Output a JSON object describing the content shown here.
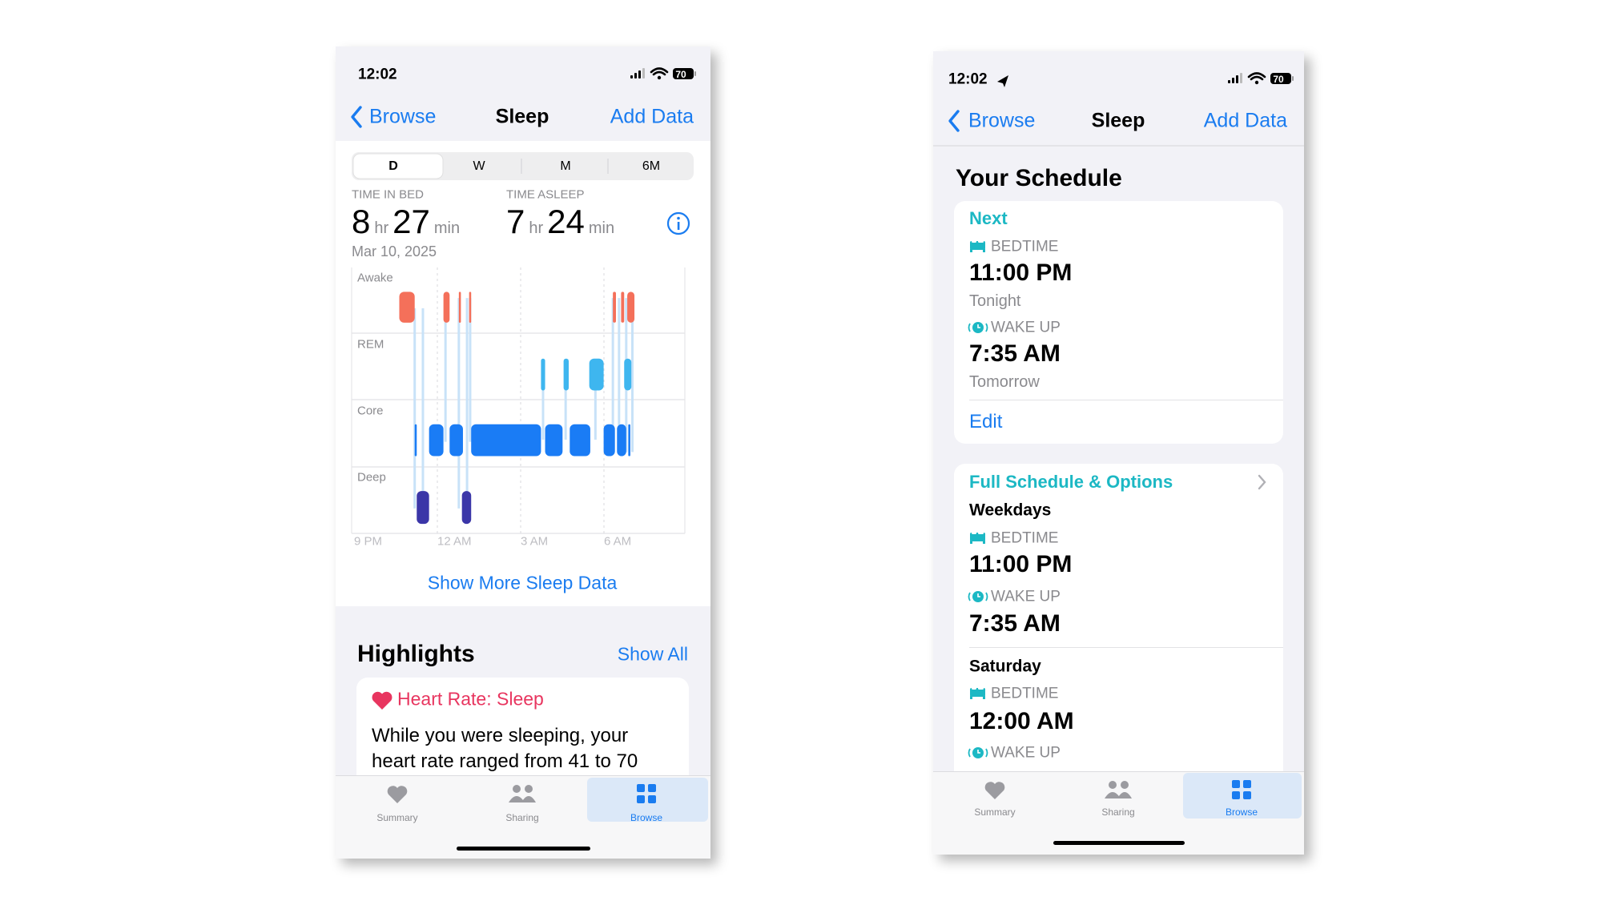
{
  "left_screen": {
    "status_bar": {
      "time": "12:02",
      "battery": "70"
    },
    "nav": {
      "back": "Browse",
      "title": "Sleep",
      "action": "Add Data"
    },
    "segments": [
      "D",
      "W",
      "M",
      "6M"
    ],
    "summary": {
      "time_in_bed": {
        "label": "TIME IN BED",
        "hours": "8",
        "hr_unit": "hr",
        "minutes": "27",
        "min_unit": "min"
      },
      "time_asleep": {
        "label": "TIME ASLEEP",
        "hours": "7",
        "hr_unit": "hr",
        "minutes": "24",
        "min_unit": "min"
      },
      "date": "Mar 10, 2025"
    },
    "chart": {
      "stages": [
        "Awake",
        "REM",
        "Core",
        "Deep"
      ],
      "x_labels": [
        "9 PM",
        "12 AM",
        "3 AM",
        "6 AM"
      ]
    },
    "show_more": "Show More Sleep Data",
    "highlights": {
      "title": "Highlights",
      "show_all": "Show All",
      "card": {
        "title": "Heart Rate: Sleep",
        "body_lines": [
          "While you were sleeping, your",
          "heart rate ranged from 41 to 70"
        ]
      }
    },
    "tab_bar": [
      "Summary",
      "Sharing",
      "Browse"
    ]
  },
  "right_screen": {
    "status_bar": {
      "time": "12:02",
      "battery": "70"
    },
    "nav": {
      "back": "Browse",
      "title": "Sleep",
      "action": "Add Data"
    },
    "section_title": "Your Schedule",
    "next_card": {
      "heading": "Next",
      "bedtime_label": "BEDTIME",
      "bedtime": "11:00 PM",
      "bedtime_day": "Tonight",
      "wakeup_label": "WAKE UP",
      "wakeup": "7:35 AM",
      "wakeup_day": "Tomorrow",
      "edit": "Edit"
    },
    "schedule_card": {
      "heading": "Full Schedule & Options",
      "weekdays": {
        "title": "Weekdays",
        "bedtime_label": "BEDTIME",
        "bedtime": "11:00 PM",
        "wakeup_label": "WAKE UP",
        "wakeup": "7:35 AM"
      },
      "saturday": {
        "title": "Saturday",
        "bedtime_label": "BEDTIME",
        "bedtime": "12:00 AM",
        "wakeup_label": "WAKE UP"
      }
    },
    "tab_bar": [
      "Summary",
      "Sharing",
      "Browse"
    ]
  }
}
